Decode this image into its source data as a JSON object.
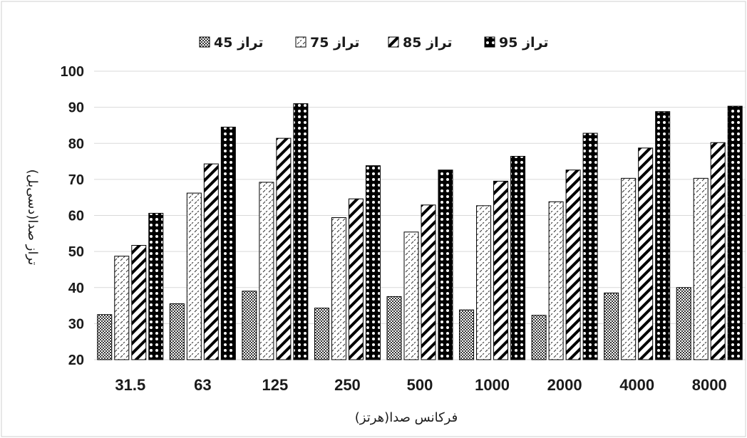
{
  "chart_data": {
    "type": "bar",
    "title": "",
    "xlabel": "فرکانس صدا(هرتز)",
    "ylabel": "تراز صدا(دسی‌بل)",
    "ylim": [
      20,
      100
    ],
    "yticks": [
      20,
      30,
      40,
      50,
      60,
      70,
      80,
      90,
      100
    ],
    "grid": true,
    "legend_position": "top",
    "categories": [
      "31.5",
      "63",
      "125",
      "250",
      "500",
      "1000",
      "2000",
      "4000",
      "8000"
    ],
    "series": [
      {
        "name": "تراز 45",
        "pattern": "dots",
        "values": [
          32.5,
          35.5,
          39,
          34.3,
          37.5,
          33.8,
          32.3,
          38.5,
          40
        ]
      },
      {
        "name": "تراز 75",
        "pattern": "dashes",
        "values": [
          48.7,
          66.2,
          69.2,
          59.4,
          55.4,
          62.7,
          63.8,
          70.3,
          70.3
        ]
      },
      {
        "name": "تراز 85",
        "pattern": "diagonal",
        "values": [
          51.7,
          74.3,
          81.4,
          64.6,
          62.9,
          69.5,
          72.6,
          78.7,
          80.2
        ]
      },
      {
        "name": "تراز 95",
        "pattern": "circles",
        "values": [
          60.6,
          84.5,
          91,
          73.8,
          72.6,
          76.4,
          82.8,
          88.8,
          90.3
        ]
      }
    ]
  }
}
